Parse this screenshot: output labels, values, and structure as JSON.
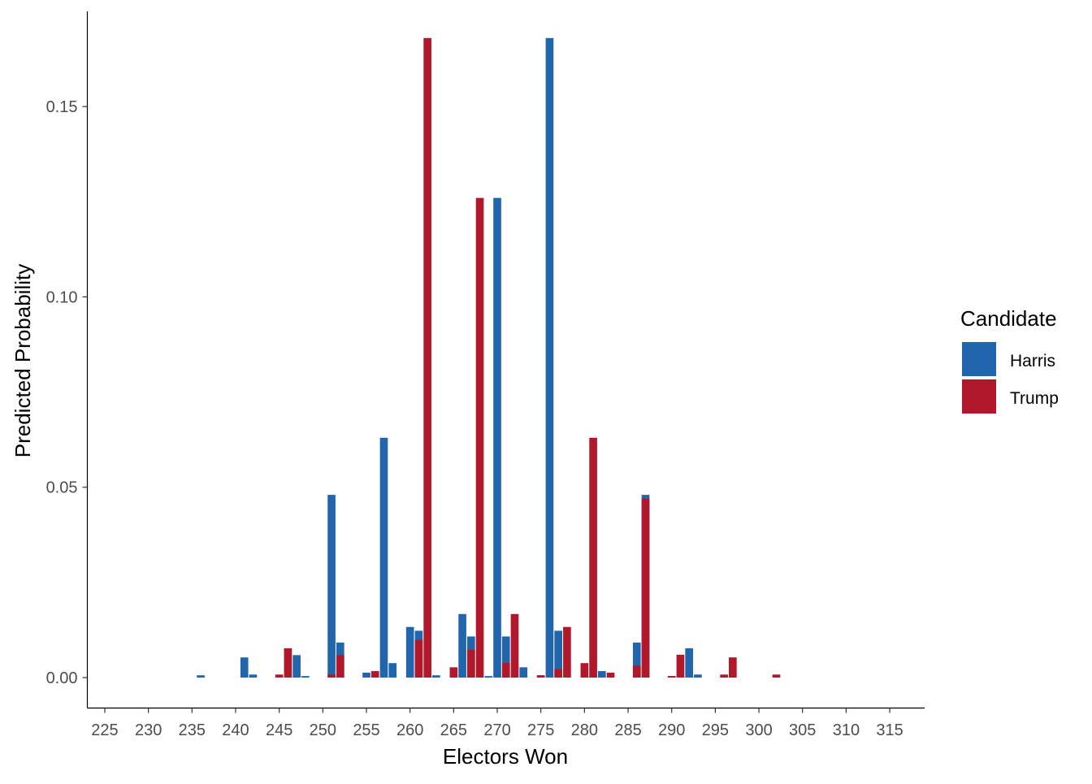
{
  "chart_data": {
    "type": "bar",
    "title": "",
    "xlabel": "Electors Won",
    "ylabel": "Predicted Probability",
    "xlim": [
      223,
      319
    ],
    "ylim": [
      -0.008,
      0.175
    ],
    "xticks": [
      225,
      230,
      235,
      240,
      245,
      250,
      255,
      260,
      265,
      270,
      275,
      280,
      285,
      290,
      295,
      300,
      305,
      310,
      315
    ],
    "xtick_labels": [
      "225",
      "230",
      "235",
      "240",
      "245",
      "250",
      "255",
      "260",
      "265",
      "270",
      "275",
      "280",
      "285",
      "290",
      "295",
      "300",
      "305",
      "310",
      "315"
    ],
    "yticks": [
      0.0,
      0.05,
      0.1,
      0.15
    ],
    "ytick_labels": [
      "0.00",
      "0.05",
      "0.10",
      "0.15"
    ],
    "grid": false,
    "bar_layering": "overlap",
    "legend": {
      "title": "Candidate",
      "position": "right",
      "entries": [
        "Harris",
        "Trump"
      ]
    },
    "series": [
      {
        "name": "Harris",
        "color": "#2166AC",
        "x": [
          236,
          241,
          242,
          247,
          248,
          251,
          252,
          255,
          257,
          258,
          260,
          261,
          263,
          266,
          267,
          269,
          270,
          271,
          273,
          275,
          276,
          277,
          281,
          282,
          286,
          287,
          290,
          292,
          293
        ],
        "values": [
          0.0006,
          0.0053,
          0.0008,
          0.0059,
          0.0004,
          0.048,
          0.0092,
          0.0013,
          0.063,
          0.0038,
          0.0133,
          0.0123,
          0.0006,
          0.0167,
          0.0108,
          0.0004,
          0.126,
          0.0108,
          0.0027,
          0.0006,
          0.168,
          0.0123,
          0.0004,
          0.0017,
          0.0092,
          0.048,
          0.0004,
          0.0077,
          0.0008
        ]
      },
      {
        "name": "Trump",
        "color": "#B2182B",
        "x": [
          245,
          246,
          251,
          252,
          256,
          261,
          262,
          265,
          267,
          268,
          271,
          272,
          275,
          277,
          278,
          280,
          281,
          283,
          286,
          287,
          290,
          291,
          296,
          297,
          302
        ],
        "values": [
          0.0008,
          0.0077,
          0.0008,
          0.0059,
          0.0017,
          0.0099,
          0.168,
          0.0027,
          0.0073,
          0.126,
          0.0038,
          0.0167,
          0.0006,
          0.0022,
          0.0133,
          0.0038,
          0.063,
          0.0013,
          0.0031,
          0.047,
          0.0004,
          0.006,
          0.0008,
          0.0053,
          0.0008
        ]
      }
    ]
  }
}
